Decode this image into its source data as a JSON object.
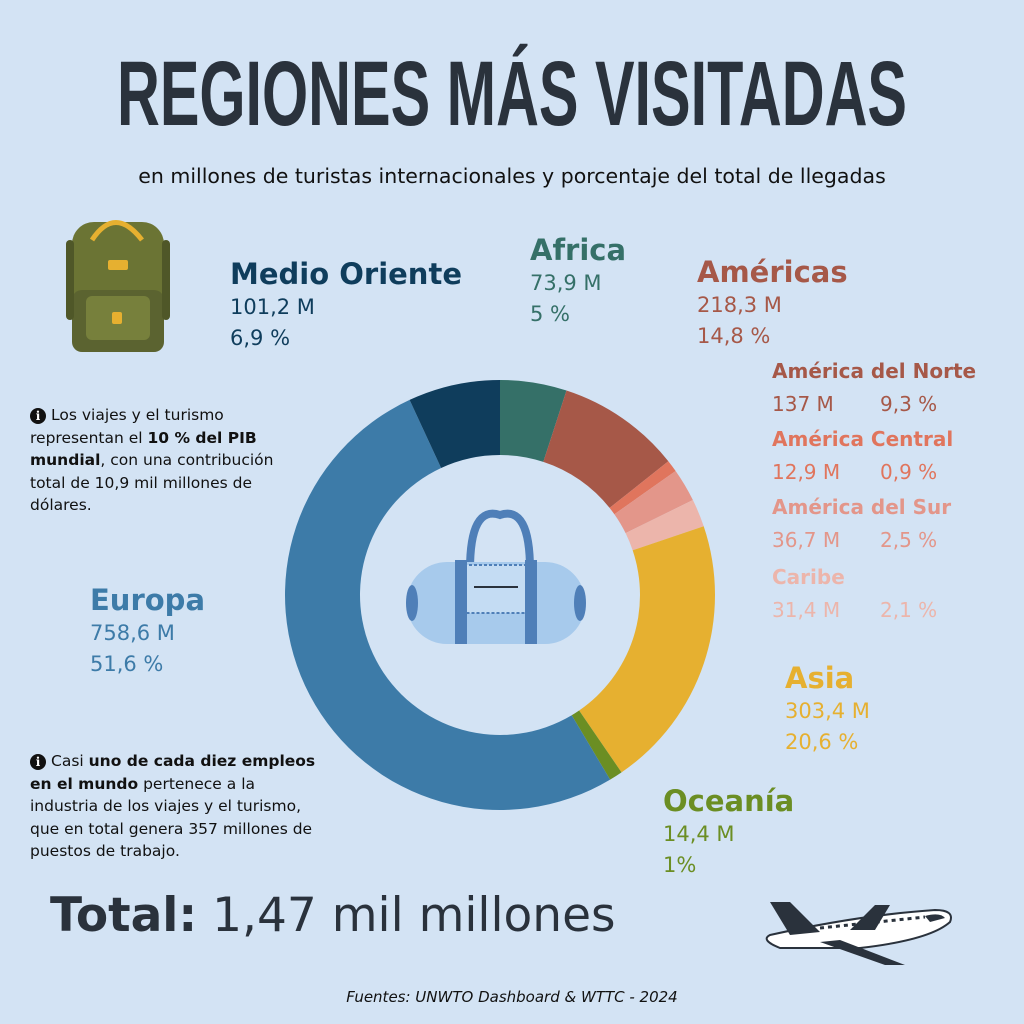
{
  "chart_data": {
    "type": "pie",
    "title": "REGIONES MÁS VISITADAS",
    "subtitle": "en millones de turistas internacionales y porcentaje del total de llegadas",
    "categories": [
      "Africa",
      "América del Norte",
      "América Central",
      "América del Sur",
      "Caribe",
      "Asia",
      "Oceanía",
      "Europa",
      "Medio Oriente"
    ],
    "values": [
      5,
      9.3,
      0.9,
      2.5,
      2.1,
      20.6,
      1,
      51.6,
      6.9
    ],
    "value_labels": [
      "5 %",
      "9,3 %",
      "0,9 %",
      "2,5 %",
      "2,1 %",
      "20,6 %",
      "1%",
      "51,6 %",
      "6,9 %"
    ],
    "millions": [
      73.9,
      137,
      12.9,
      36.7,
      31.4,
      303.4,
      14.4,
      758.6,
      101.2
    ],
    "millions_labels": [
      "73,9 M",
      "137 M",
      "12,9 M",
      "36,7 M",
      "31,4 M",
      "303,4 M",
      "14,4 M",
      "758,6 M",
      "101,2 M"
    ],
    "colors": [
      "#357068",
      "#a65848",
      "#e0755d",
      "#e3968a",
      "#ecb5ab",
      "#e6b030",
      "#6b8e23",
      "#3d7ba8",
      "#0f3d5c"
    ],
    "groups": [
      {
        "name": "Américas",
        "millions": 218.3,
        "millions_label": "218,3 M",
        "percent": 14.8,
        "percent_label": "14,8 %",
        "color": "#a65848"
      }
    ]
  },
  "notes": [
    {
      "parts": [
        "Los viajes y el turismo representan el ",
        "10 % del PIB mundial",
        ", con una contribución total de 10,9 mil millones de dólares."
      ]
    },
    {
      "parts": [
        "Casi ",
        "uno de cada diez empleos en el mundo",
        " pertenece a la industria de los viajes y el turismo, que en total genera 357 millones de puestos de trabajo."
      ]
    }
  ],
  "total": {
    "label": "Total:",
    "value": "1,47 mil millones"
  },
  "source": "Fuentes: UNWTO Dashboard & WTTC - 2024"
}
